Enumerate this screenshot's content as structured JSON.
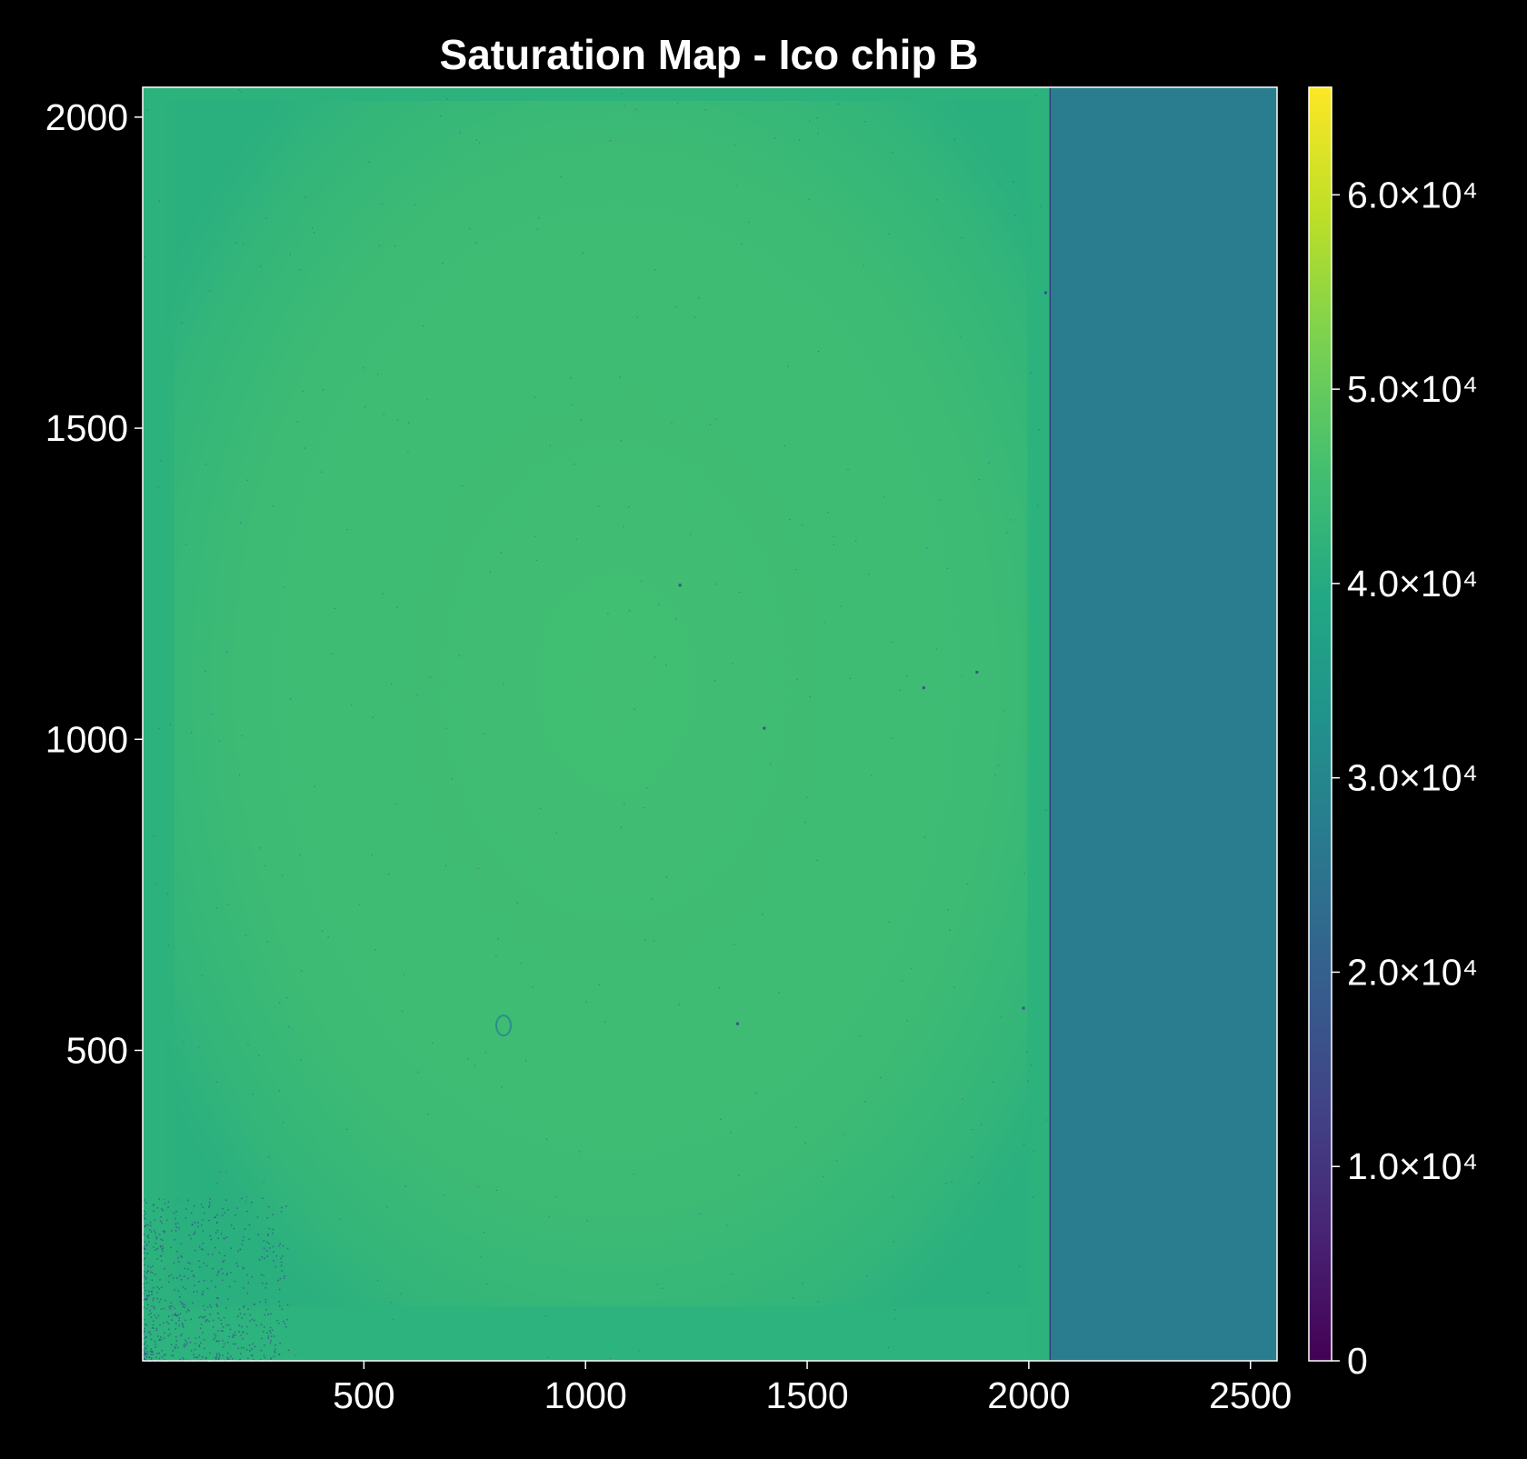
{
  "chart_data": {
    "type": "heatmap",
    "title": "Saturation Map - Ico chip B",
    "xlabel": "",
    "ylabel": "",
    "xlim": [
      1,
      2560
    ],
    "ylim": [
      1,
      2048
    ],
    "x_ticks": [
      {
        "value": 500,
        "label": "500"
      },
      {
        "value": 1000,
        "label": "1000"
      },
      {
        "value": 1500,
        "label": "1500"
      },
      {
        "value": 2000,
        "label": "2000"
      },
      {
        "value": 2500,
        "label": "2500"
      }
    ],
    "y_ticks": [
      {
        "value": 500,
        "label": "500"
      },
      {
        "value": 1000,
        "label": "1000"
      },
      {
        "value": 1500,
        "label": "1500"
      },
      {
        "value": 2000,
        "label": "2000"
      }
    ],
    "colormap": "viridis",
    "colorbar": {
      "range": [
        0,
        65535
      ],
      "ticks": [
        {
          "value": 0,
          "label": "0"
        },
        {
          "value": 10000,
          "label": "1.0×10⁴"
        },
        {
          "value": 20000,
          "label": "2.0×10⁴"
        },
        {
          "value": 30000,
          "label": "3.0×10⁴"
        },
        {
          "value": 40000,
          "label": "4.0×10⁴"
        },
        {
          "value": 50000,
          "label": "5.0×10⁴"
        },
        {
          "value": 60000,
          "label": "6.0×10⁴"
        }
      ]
    },
    "regions": [
      {
        "name": "sensor",
        "x_range": [
          1,
          2048
        ],
        "y_range": [
          1,
          2048
        ],
        "approx_value": 45000
      },
      {
        "name": "fill",
        "x_range": [
          2048,
          2560
        ],
        "y_range": [
          1,
          2048
        ],
        "approx_value": 28000
      }
    ],
    "colors": {
      "background": "#000000",
      "sensor_edge": "#2db27d",
      "sensor_center": "#40bd72",
      "sensor_inner": "#3fbc73",
      "fill_region": "#2a7d8e",
      "border": "#ffffff",
      "defect": "#3b528b"
    }
  }
}
